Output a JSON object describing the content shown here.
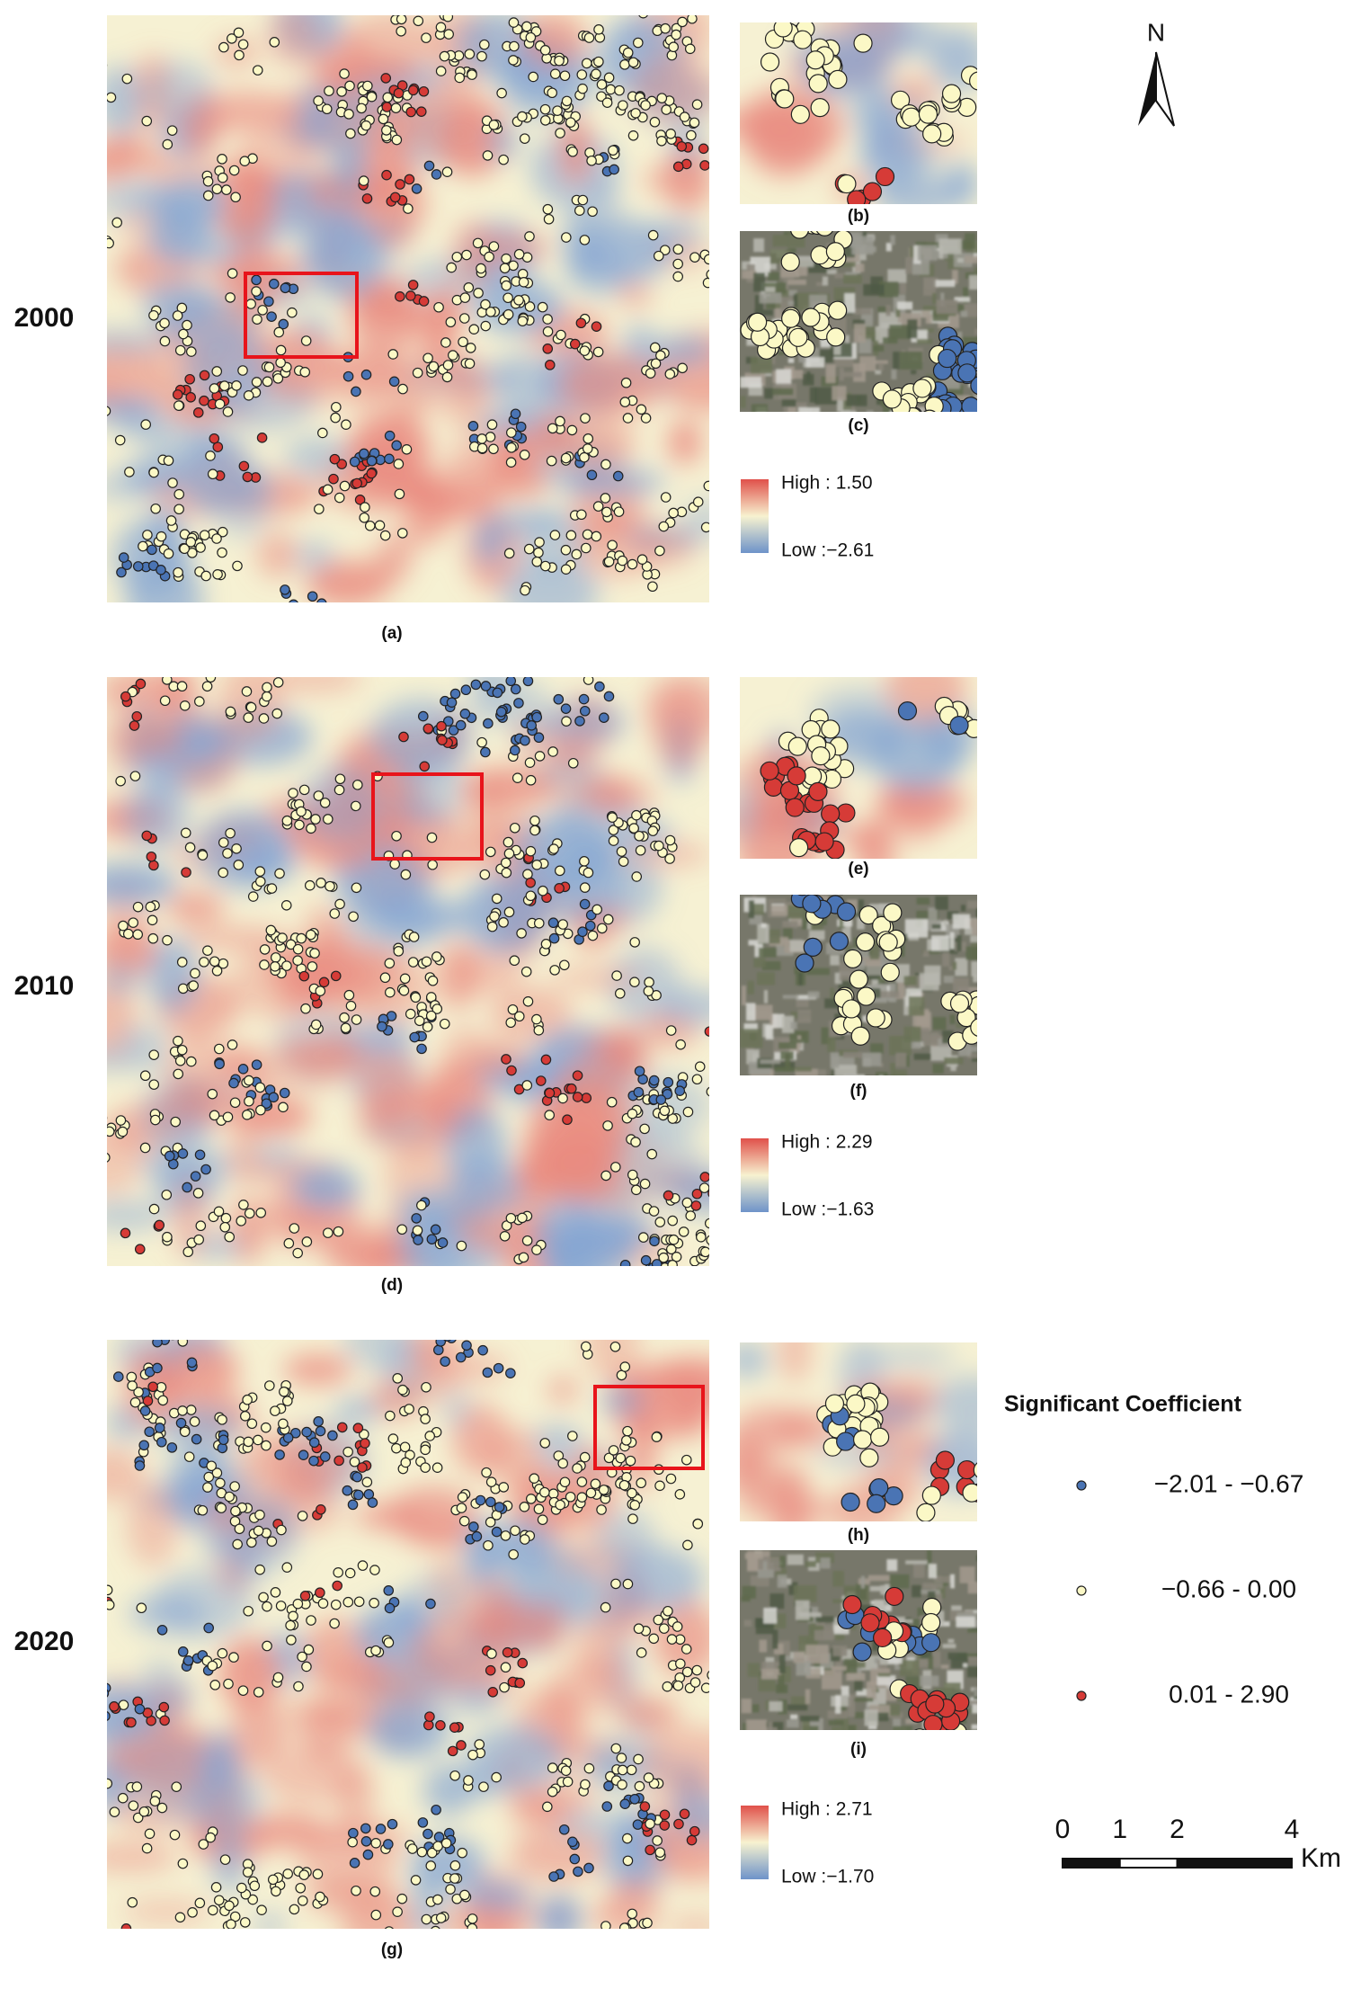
{
  "panels": [
    {
      "year": "2000",
      "main_label": "(a)",
      "inset_labels": [
        "(b)",
        "(c)"
      ],
      "legend": {
        "high": "High : 1.50",
        "low": "Low :−2.61"
      }
    },
    {
      "year": "2010",
      "main_label": "(d)",
      "inset_labels": [
        "(e)",
        "(f)"
      ],
      "legend": {
        "high": "High : 2.29",
        "low": "Low :−1.63"
      }
    },
    {
      "year": "2020",
      "main_label": "(g)",
      "inset_labels": [
        "(h)",
        "(i)"
      ],
      "legend": {
        "high": "High : 2.71",
        "low": "Low :−1.70"
      }
    }
  ],
  "north": "N",
  "legend": {
    "title": "Significant Coefficient",
    "classes": [
      {
        "label": "−2.01 - −0.67",
        "color": "#4a74b4"
      },
      {
        "label": "−0.66 - 0.00",
        "color": "#fbf8c6"
      },
      {
        "label": "0.01 - 2.90",
        "color": "#d63b37"
      }
    ]
  },
  "scale_bar": {
    "ticks": [
      0,
      1,
      2,
      4
    ],
    "unit": "Km"
  }
}
